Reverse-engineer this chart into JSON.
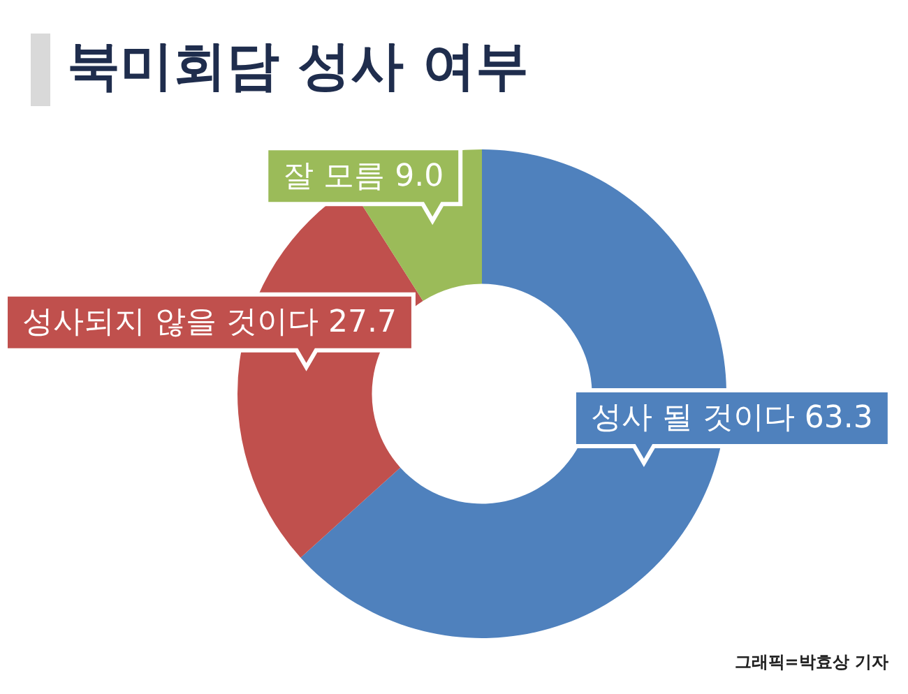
{
  "chart_data": {
    "type": "donut",
    "title": "북미회담 성사 여부",
    "categories": [
      "성사 될 것이다",
      "성사되지 않을 것이다",
      "잘 모름"
    ],
    "values": [
      63.3,
      27.7,
      9.0
    ],
    "colors": [
      "#4f81bd",
      "#c0504d",
      "#9bbb59"
    ],
    "value_labels": [
      "63.3",
      "27.7",
      "9.0"
    ],
    "annotations": [
      "그래픽=박효상 기자"
    ]
  }
}
